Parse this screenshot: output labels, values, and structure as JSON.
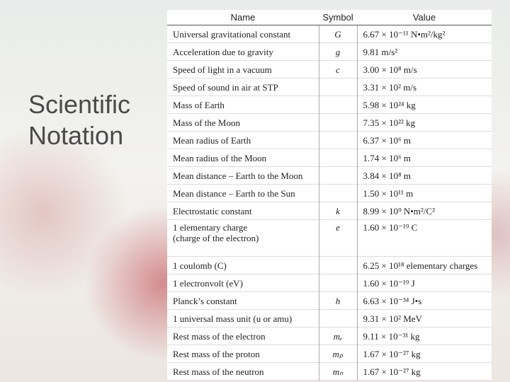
{
  "title": "Scientific Notation",
  "table": {
    "header": [
      "Name",
      "Symbol",
      "Value"
    ],
    "rows": [
      [
        "Universal gravitational constant",
        "G",
        "6.67 × 10⁻¹¹ N•m²/kg²"
      ],
      [
        "Acceleration due to gravity",
        "g",
        "9.81 m/s²"
      ],
      [
        "Speed of light in a vacuum",
        "c",
        "3.00 × 10⁸ m/s"
      ],
      [
        "Speed of sound in air at STP",
        null,
        "3.31 × 10² m/s"
      ],
      [
        "Mass of Earth",
        null,
        "5.98 × 10²⁴ kg"
      ],
      [
        "Mass of the Moon",
        null,
        "7.35 × 10²² kg"
      ],
      [
        "Mean radius of Earth",
        null,
        "6.37 × 10⁶ m"
      ],
      [
        "Mean radius of the Moon",
        null,
        "1.74 × 10⁶ m"
      ],
      [
        "Mean distance – Earth to the Moon",
        null,
        "3.84 × 10⁸ m"
      ],
      [
        "Mean distance – Earth to the Sun",
        null,
        "1.50 × 10¹¹ m"
      ],
      [
        "Electrostatic constant",
        "k",
        "8.99 × 10⁹ N•m²/C²"
      ],
      [
        "1 elementary charge\n(charge of the electron)",
        "e",
        "1.60 × 10⁻¹⁹ C"
      ],
      [
        "1 coulomb (C)",
        null,
        "6.25 × 10¹⁸ elementary charges"
      ],
      [
        "1 electronvolt (eV)",
        null,
        "1.60 × 10⁻¹⁹ J"
      ],
      [
        "Planck’s constant",
        "h",
        "6.63 × 10⁻³⁴ J•s"
      ],
      [
        "1 universal mass unit (u or amu)",
        null,
        "9.31 × 10² MeV"
      ],
      [
        "Rest mass of the electron",
        "mₑ",
        "9.11 × 10⁻³¹ kg"
      ],
      [
        "Rest mass of the proton",
        "mₚ",
        "1.67 × 10⁻²⁷ kg"
      ],
      [
        "Rest mass of the neutron",
        "mₙ",
        "1.67 × 10⁻²⁷ kg"
      ]
    ]
  }
}
